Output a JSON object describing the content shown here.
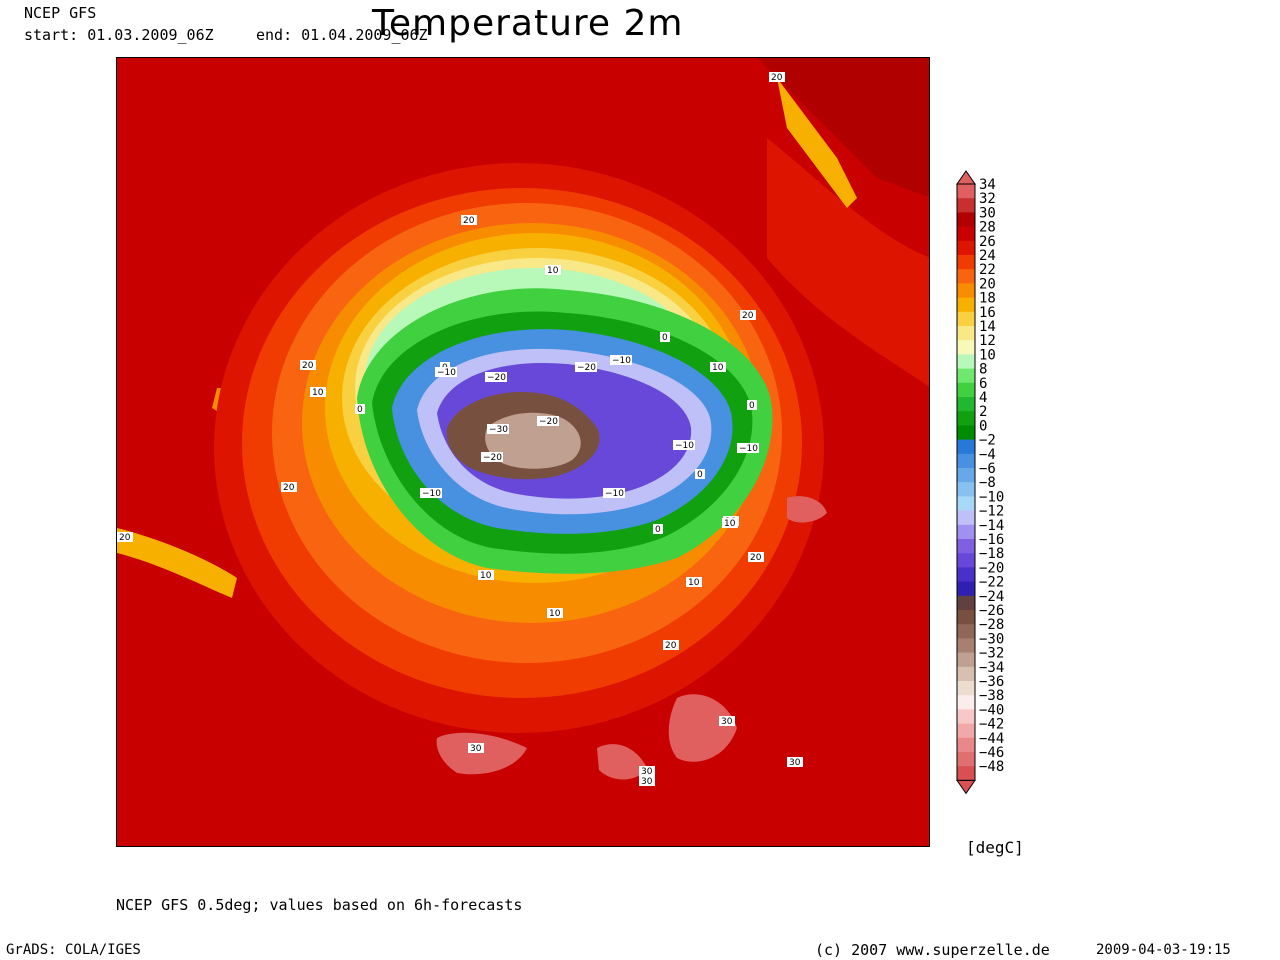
{
  "header": {
    "model": "NCEP GFS",
    "start": "start: 01.03.2009_06Z",
    "end": "end: 01.04.2009_06Z",
    "title": "Temperature 2m"
  },
  "colorbar": {
    "unit": "[degC]",
    "levels": [
      "34",
      "32",
      "30",
      "28",
      "26",
      "24",
      "22",
      "20",
      "18",
      "16",
      "14",
      "12",
      "10",
      "8",
      "6",
      "4",
      "2",
      "0",
      "−2",
      "−4",
      "−6",
      "−8",
      "−10",
      "−12",
      "−14",
      "−16",
      "−18",
      "−20",
      "−22",
      "−24",
      "−26",
      "−28",
      "−30",
      "−32",
      "−34",
      "−36",
      "−38",
      "−40",
      "−42",
      "−44",
      "−46",
      "−48"
    ],
    "colors": [
      "#e06060",
      "#c83030",
      "#b00000",
      "#c80000",
      "#dc1400",
      "#f03c00",
      "#f86410",
      "#f88c00",
      "#f8b000",
      "#f8d040",
      "#f8e888",
      "#f8f8b8",
      "#b8f8b8",
      "#70e870",
      "#40d040",
      "#20b830",
      "#10a010",
      "#008c00",
      "#2878d8",
      "#4890e0",
      "#68a8e8",
      "#88c0f0",
      "#a8d8f8",
      "#c0c0f8",
      "#a090f0",
      "#8060e0",
      "#6848d8",
      "#4830c8",
      "#3020b0",
      "#604040",
      "#785040",
      "#906858",
      "#a88070",
      "#c0a090",
      "#d8c0b0",
      "#ecdcd0",
      "#fcecec",
      "#f8c8c8",
      "#f0a8a8",
      "#e88888",
      "#e07070",
      "#d85050"
    ]
  },
  "map": {
    "contour_labels": [
      "20",
      "20",
      "10",
      "20",
      "0",
      "−10",
      "−20",
      "−20",
      "−10",
      "0",
      "10",
      "20",
      "10",
      "0",
      "−20",
      "−30",
      "−20",
      "−10",
      "−10",
      "0",
      "−10",
      "−10",
      "10",
      "0",
      "0",
      "10",
      "20",
      "10",
      "10",
      "10",
      "20",
      "20",
      "30",
      "30",
      "30",
      "30",
      "30",
      "20"
    ]
  },
  "footer": {
    "note": "NCEP GFS 0.5deg; values based on 6h-forecasts",
    "software": "GrADS: COLA/IGES",
    "copyright": "(c) 2007 www.superzelle.de",
    "timestamp": "2009-04-03-19:15"
  }
}
